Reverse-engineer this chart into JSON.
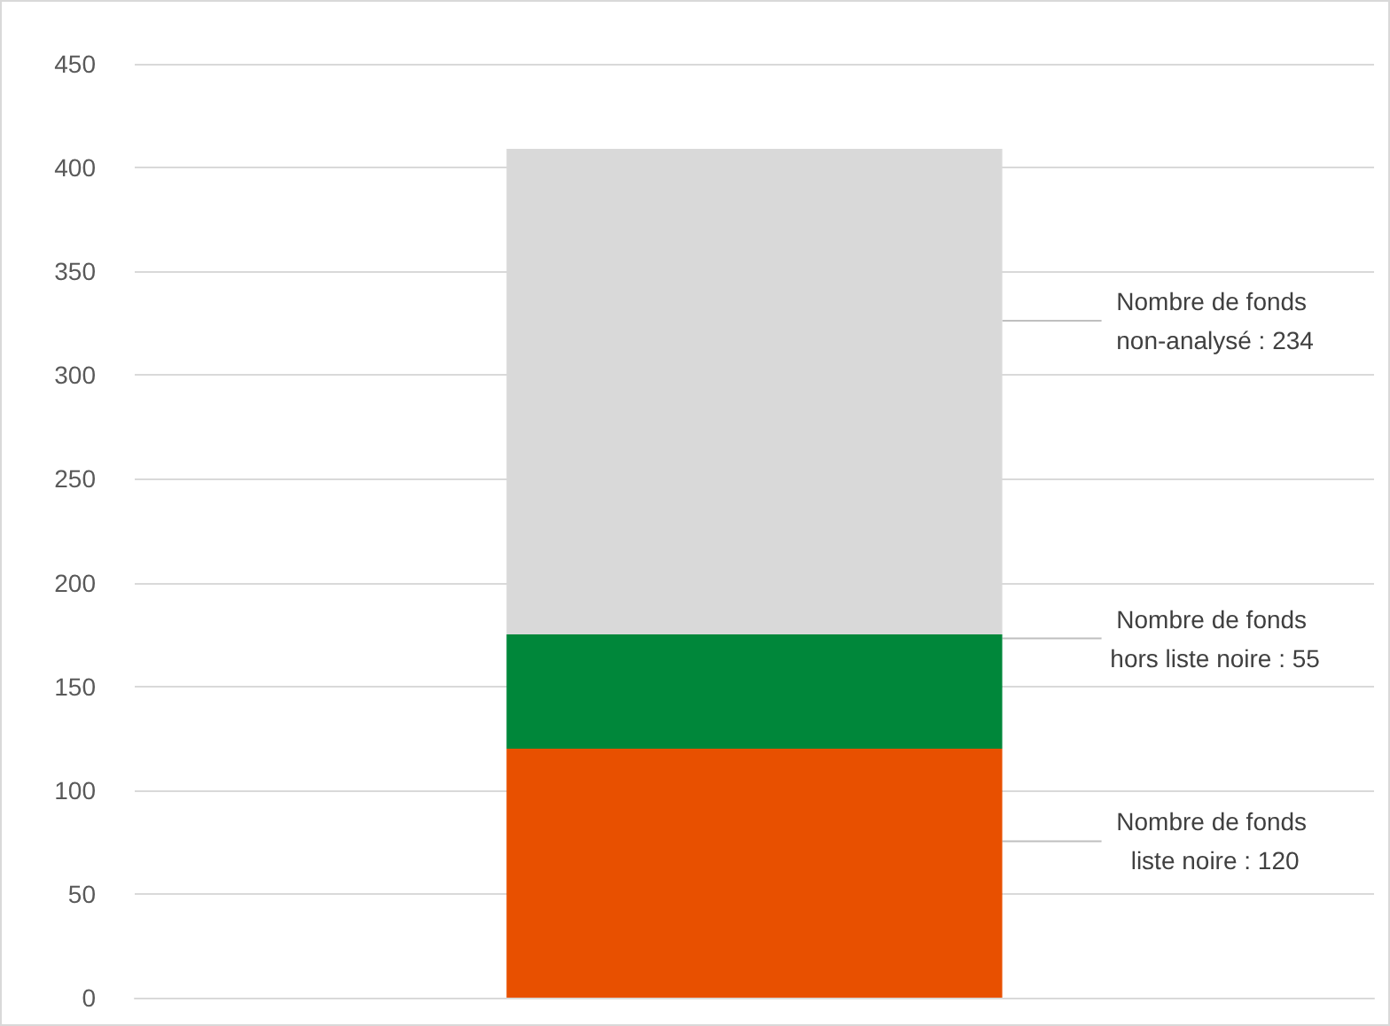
{
  "chart_data": {
    "type": "bar",
    "stacked": true,
    "categories": [
      null
    ],
    "series": [
      {
        "color": "#e85000",
        "values": [
          120
        ],
        "value_labels": [
          "Nombre de fonds liste noire : 120"
        ]
      },
      {
        "color": "#00873a",
        "values": [
          55
        ],
        "value_labels": [
          "Nombre de fonds hors liste noire : 55"
        ]
      },
      {
        "color": "#d9d9d9",
        "values": [
          234
        ],
        "value_labels": [
          "Nombre de fonds non-analysé : 234"
        ]
      }
    ],
    "ylim": [
      0,
      450
    ],
    "yticks": [
      0,
      50,
      100,
      150,
      200,
      250,
      300,
      350,
      400,
      450
    ],
    "grid": "y"
  }
}
